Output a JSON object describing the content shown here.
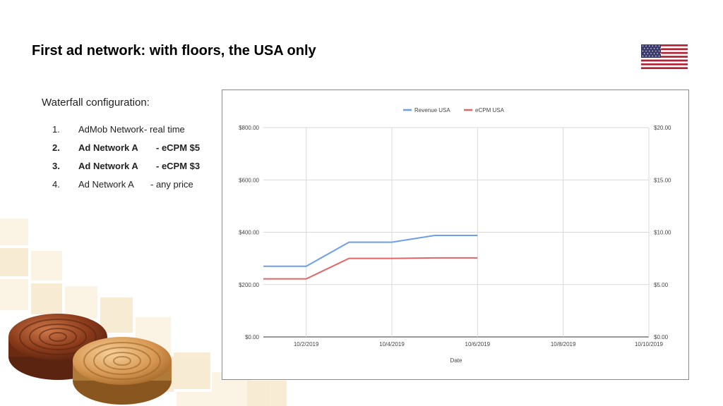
{
  "slide": {
    "title": "First ad network: with floors, the USA only",
    "flag_icon": "us-flag-icon"
  },
  "waterfall": {
    "heading": "Waterfall configuration:",
    "items": [
      {
        "num": "1.",
        "name": "AdMob Network",
        "price": "- real time",
        "bold": false
      },
      {
        "num": "2.",
        "name": "Ad Network A",
        "price": "- eCPM $5",
        "bold": true
      },
      {
        "num": "3.",
        "name": "Ad Network A",
        "price": "- eCPM $3",
        "bold": true
      },
      {
        "num": "4.",
        "name": "Ad Network A",
        "price": "- any price",
        "bold": false
      }
    ]
  },
  "chart_data": {
    "type": "line",
    "title": "",
    "xlabel": "Date",
    "x_ticks": [
      "10/2/2019",
      "10/4/2019",
      "10/6/2019",
      "10/8/2019",
      "10/10/2019"
    ],
    "xlim": [
      "10/1/2019",
      "10/10/2019"
    ],
    "y_left": {
      "ticks": [
        "$0.00",
        "$200.00",
        "$400.00",
        "$600.00",
        "$800.00"
      ],
      "lim": [
        0,
        800
      ]
    },
    "y_right": {
      "ticks": [
        "$0.00",
        "$5.00",
        "$10.00",
        "$15.00",
        "$20.00"
      ],
      "lim": [
        0,
        20
      ]
    },
    "legend_position": "top",
    "grid": true,
    "x": [
      "10/1/2019",
      "10/2/2019",
      "10/3/2019",
      "10/4/2019",
      "10/5/2019",
      "10/6/2019"
    ],
    "series": [
      {
        "name": "Revenue USA",
        "axis": "left",
        "color": "#6d9eeb",
        "values": [
          270,
          270,
          362,
          362,
          388,
          388
        ]
      },
      {
        "name": "eCPM USA",
        "axis": "right",
        "color": "#e06666",
        "values": [
          5.55,
          5.55,
          7.5,
          7.5,
          7.55,
          7.55
        ]
      }
    ]
  }
}
